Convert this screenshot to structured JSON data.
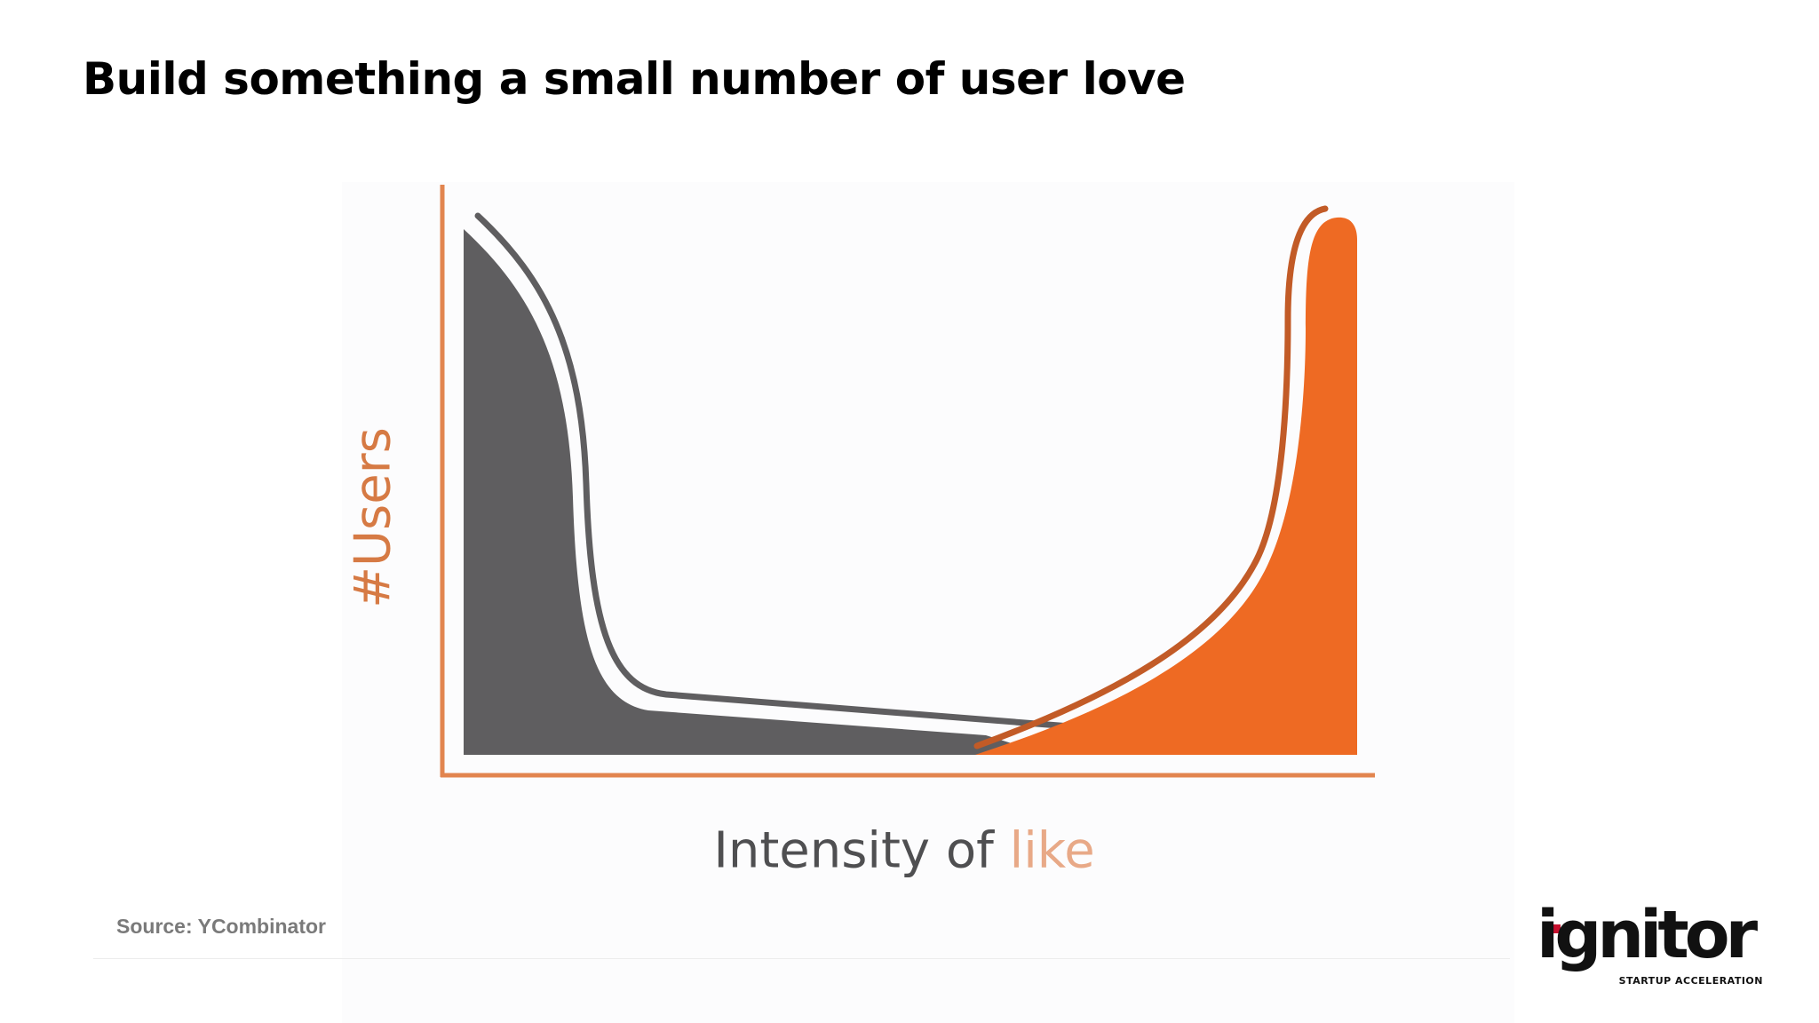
{
  "slide": {
    "title": "Build something a small number of user love"
  },
  "figure": {
    "y_axis_label": "#Users",
    "x_axis_label_main": "Intensity of ",
    "x_axis_label_accent": "like",
    "colors": {
      "axis": "#e2854f",
      "left_fill": "#5f5e60",
      "right_fill": "#ee6a23",
      "left_outline": "#5f5e60",
      "right_outline": "#c25b27"
    }
  },
  "source": {
    "text": "Source: YCombinator"
  },
  "logo": {
    "wordmark": "ignitor",
    "tagline": "STARTUP ACCELERATION",
    "accent_color": "#c8102e"
  }
}
